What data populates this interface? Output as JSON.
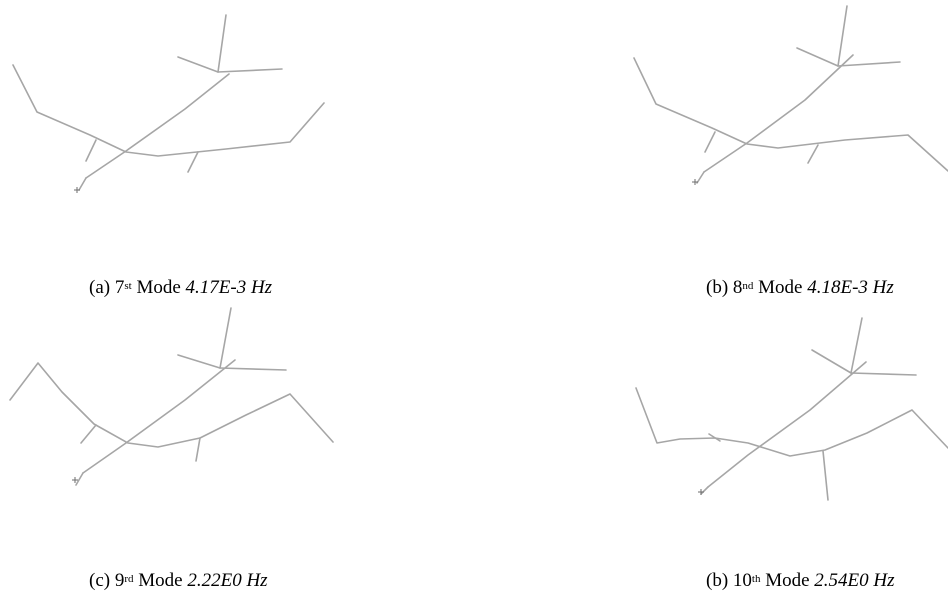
{
  "figure": {
    "panels": [
      {
        "id": "a",
        "prefix": "(a) 7",
        "ordinal": "st",
        "mode_word": "Mode",
        "frequency": "4.17E-3 Hz"
      },
      {
        "id": "b",
        "prefix": "(b) 8",
        "ordinal": "nd",
        "mode_word": "Mode",
        "frequency": "4.18E-3 Hz"
      },
      {
        "id": "c",
        "prefix": "(c) 9",
        "ordinal": "rd",
        "mode_word": "Mode",
        "frequency": "2.22E0 Hz"
      },
      {
        "id": "d",
        "prefix": "(b) 10",
        "ordinal": "th",
        "mode_word": "Mode",
        "frequency": "2.54E0 Hz"
      }
    ],
    "line_color": "#a6a6a6"
  }
}
